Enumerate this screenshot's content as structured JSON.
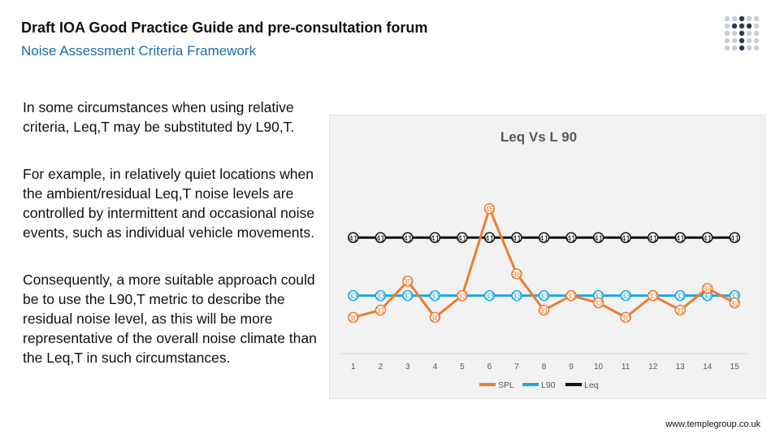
{
  "header": {
    "title": "Draft IOA Good Practice Guide and pre-consultation forum",
    "subtitle": "Noise Assessment Criteria Framework"
  },
  "body": {
    "paragraphs": [
      "In some circumstances when using relative criteria, Leq,T may be substituted by L90,T.",
      "For example, in relatively quiet locations when the ambient/residual Leq,T noise levels are controlled by intermittent and occasional noise events, such as individual vehicle movements.",
      "Consequently, a more suitable approach could be to use the L90,T metric to describe the residual noise level, as this will be more representative of the overall noise climate than the Leq,T in such circumstances."
    ]
  },
  "footer": {
    "url": "www.templegroup.co.uk"
  },
  "colors": {
    "spl": "#ed7d31",
    "l90": "#1fa9e1",
    "leq": "#111111",
    "title_text": "#595959",
    "subtitle_text": "#1a6ea8"
  },
  "logo": {
    "icon": "dot-grid-logo"
  },
  "chart_data": {
    "type": "line",
    "title": "Leq Vs L 90",
    "categories": [
      "1",
      "2",
      "3",
      "4",
      "5",
      "6",
      "7",
      "8",
      "9",
      "10",
      "11",
      "12",
      "13",
      "14",
      "15"
    ],
    "series": [
      {
        "name": "SPL",
        "values": [
          30,
          31,
          35,
          30,
          33,
          45,
          36,
          31,
          33,
          32,
          30,
          33,
          31,
          34,
          32
        ]
      },
      {
        "name": "L90",
        "values": [
          33,
          33,
          33,
          33,
          33,
          33,
          33,
          33,
          33,
          33,
          33,
          33,
          33,
          33,
          33
        ]
      },
      {
        "name": "Leq",
        "values": [
          41,
          41,
          41,
          41,
          41,
          41,
          41,
          41,
          41,
          41,
          41,
          41,
          41,
          41,
          41
        ]
      }
    ],
    "ylim": [
      25,
      50
    ],
    "data_labels": true,
    "grid": false,
    "legend_position": "bottom"
  }
}
